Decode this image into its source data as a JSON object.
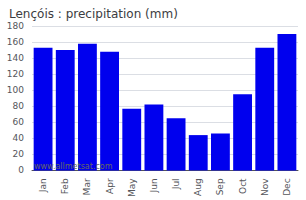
{
  "chart_data": {
    "type": "bar",
    "title": "Lençóis : precipitation (mm)",
    "categories": [
      "Jan",
      "Feb",
      "Mar",
      "Apr",
      "May",
      "Jun",
      "Jul",
      "Aug",
      "Sep",
      "Oct",
      "Nov",
      "Dec"
    ],
    "values": [
      153,
      150,
      158,
      148,
      77,
      82,
      65,
      44,
      46,
      95,
      153,
      170
    ],
    "color": "#0000ee",
    "ylim": [
      0,
      180
    ],
    "yticks": [
      0,
      20,
      40,
      60,
      80,
      100,
      120,
      140,
      160,
      180
    ],
    "grid": true,
    "annotations": [
      "www.allmetsat.com"
    ]
  }
}
